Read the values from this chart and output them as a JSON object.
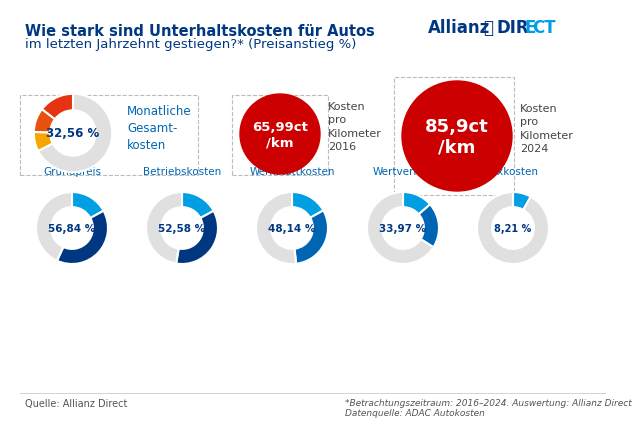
{
  "title_line1": "Wie stark sind Unterhaltskosten für Autos",
  "title_line2": "im letzten Jahrzehnt gestiegen?* (Preisanstieg %)",
  "background_color": "#ffffff",
  "top_donuts": [
    {
      "label": "Grundpreis",
      "value": 56.84,
      "text": "56,84 %"
    },
    {
      "label": "Betriebskosten",
      "value": 52.58,
      "text": "52,58 %"
    },
    {
      "label": "Werkstattkosten",
      "value": 48.14,
      "text": "48,14 %"
    },
    {
      "label": "Wertverlust",
      "value": 33.97,
      "text": "33,97 %"
    },
    {
      "label": "Fixkosten",
      "value": 8.21,
      "text": "8,21 %"
    }
  ],
  "bottom_donut": {
    "value": 32.56,
    "text": "32,56 %",
    "label": "Monatliche\nGesamt-\nkosten"
  },
  "footer_left": "Quelle: Allianz Direct",
  "footer_right": "*Betrachtungszeitraum: 2016–2024. Auswertung: Allianz Direct\nDatenquelle: ADAC Autokosten",
  "dark_blue": "#003781",
  "light_blue": "#009FE3",
  "mid_blue": "#0066B3",
  "gray": "#E0E0E0",
  "red": "#CC0000",
  "orange": "#F7A600",
  "red2": "#E63312",
  "text_blue": "#003781"
}
